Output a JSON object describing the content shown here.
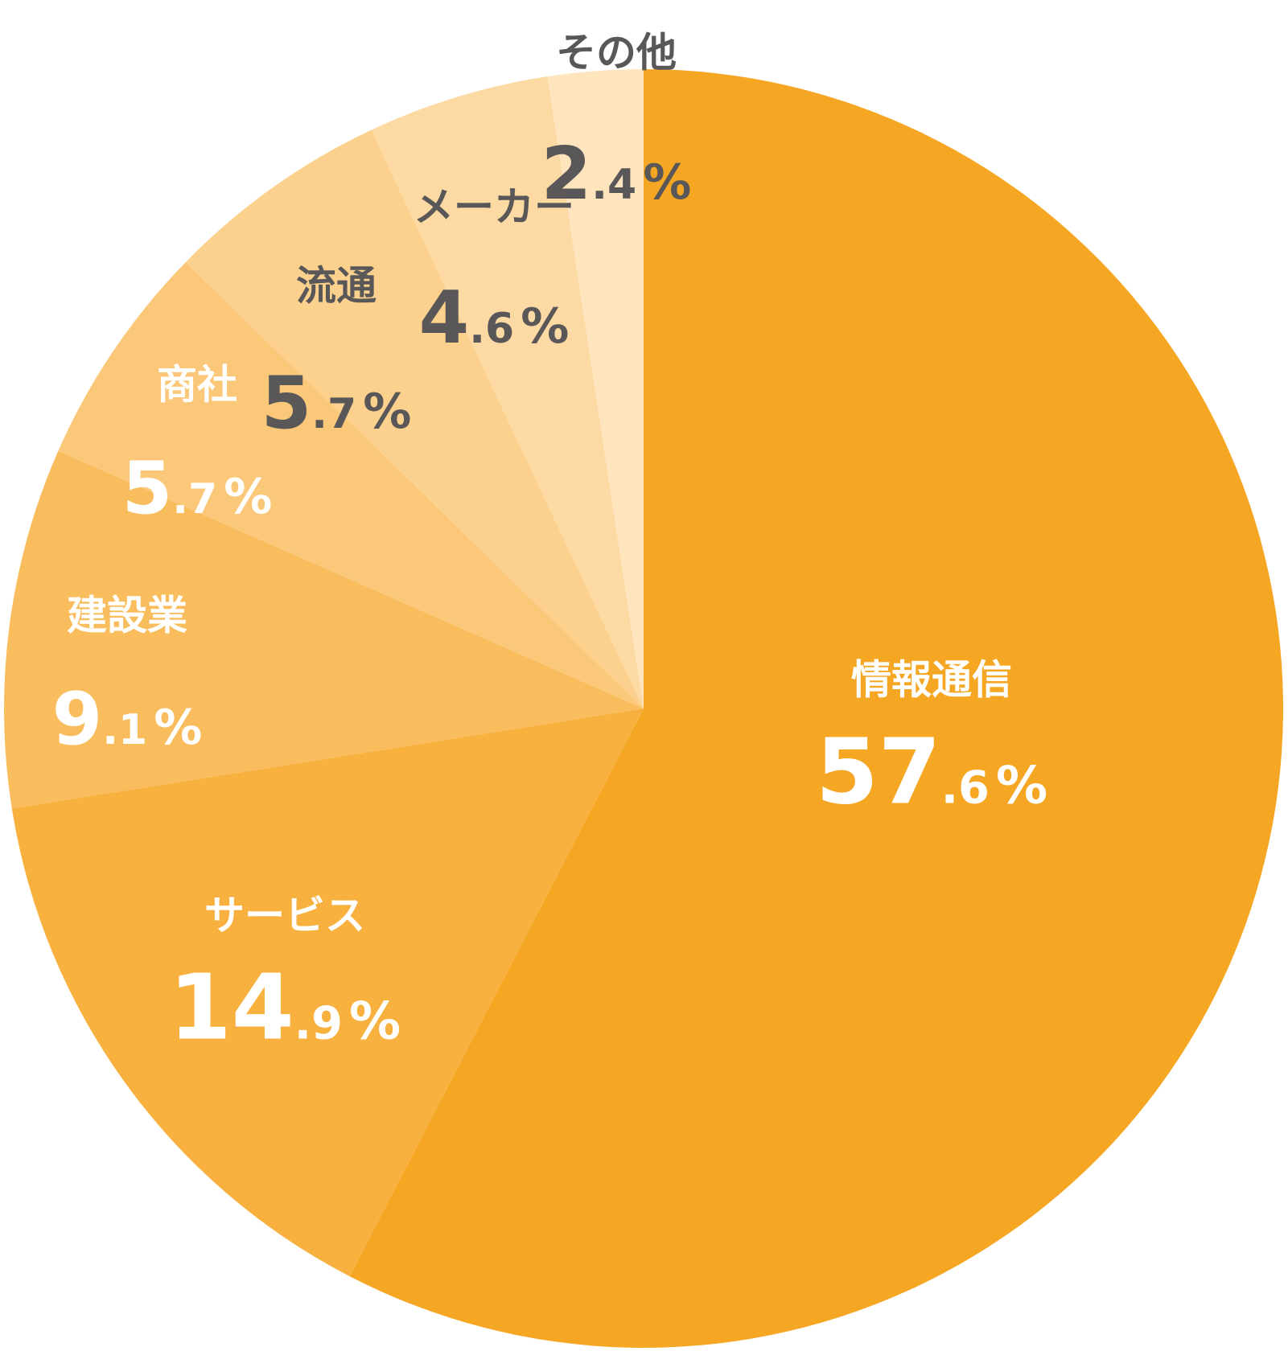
{
  "chart_data": {
    "type": "pie",
    "start": "top",
    "direction": "clockwise",
    "slices": [
      {
        "name": "情報通信",
        "value": 57.6,
        "int": "57",
        "dec": ".6",
        "unit": "%",
        "color": "#F5A623",
        "text_color": "#FFFFFF"
      },
      {
        "name": "サービス",
        "value": 14.9,
        "int": "14",
        "dec": ".9",
        "unit": "%",
        "color": "#F8B13F",
        "text_color": "#FFFFFF"
      },
      {
        "name": "建設業",
        "value": 9.1,
        "int": "9",
        "dec": ".1",
        "unit": "%",
        "color": "#F9BD5E",
        "text_color": "#FFFFFF"
      },
      {
        "name": "商社",
        "value": 5.7,
        "int": "5",
        "dec": ".7",
        "unit": "%",
        "color": "#FBC87A",
        "text_color": "#FFFFFF"
      },
      {
        "name": "流通",
        "value": 5.7,
        "int": "5",
        "dec": ".7",
        "unit": "%",
        "color": "#FCD18E",
        "text_color": "#595757"
      },
      {
        "name": "メーカー",
        "value": 4.6,
        "int": "4",
        "dec": ".6",
        "unit": "%",
        "color": "#FDDAA3",
        "text_color": "#595757"
      },
      {
        "name": "その他",
        "value": 2.4,
        "int": "2",
        "dec": ".4",
        "unit": "%",
        "color": "#FEE5BE",
        "text_color": "#595757"
      }
    ]
  }
}
